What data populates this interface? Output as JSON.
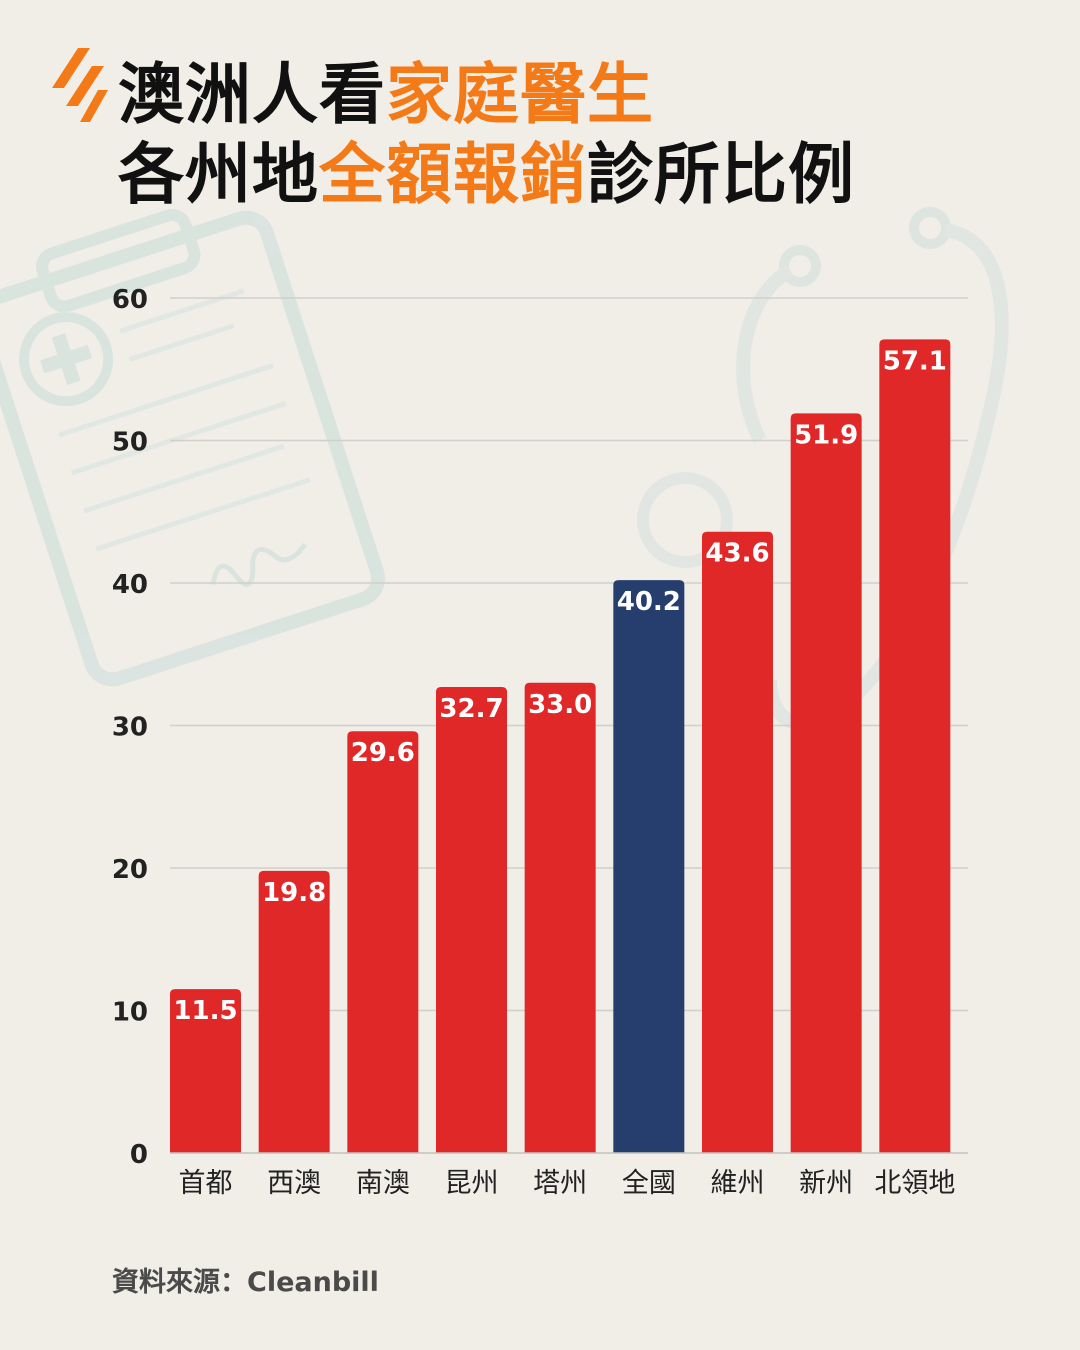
{
  "title": {
    "line1_prefix": "澳洲人看",
    "line1_highlight": "家庭醫生",
    "line2_prefix": "各州地",
    "line2_highlight": "全額報銷",
    "line2_suffix": "診所比例"
  },
  "source": "資料來源：Cleanbill",
  "colors": {
    "background": "#f1eee8",
    "highlight": "#f47a17",
    "bar_default": "#e02828",
    "bar_national": "#263e6d",
    "logo": "#f47a17"
  },
  "icons": [
    "sbs-logo-icon",
    "clipboard-icon",
    "stethoscope-icon"
  ],
  "chart_data": {
    "type": "bar",
    "title": "",
    "xlabel": "",
    "ylabel": "",
    "ylim": [
      0,
      60
    ],
    "yticks": [
      0,
      10,
      20,
      30,
      40,
      50,
      60
    ],
    "grid": true,
    "categories": [
      "首都",
      "西澳",
      "南澳",
      "昆州",
      "塔州",
      "全國",
      "維州",
      "新州",
      "北領地"
    ],
    "values": [
      11.5,
      19.8,
      29.6,
      32.7,
      33.0,
      40.2,
      43.6,
      51.9,
      57.1
    ],
    "value_labels": [
      "11.5",
      "19.8",
      "29.6",
      "32.7",
      "33.0",
      "40.2",
      "43.6",
      "51.9",
      "57.1"
    ],
    "highlight_category": "全國"
  }
}
